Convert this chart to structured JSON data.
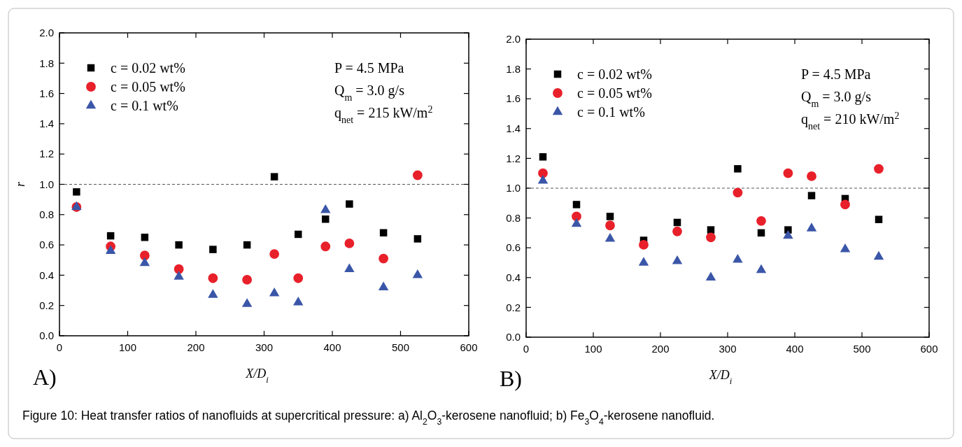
{
  "chart_data": [
    {
      "type": "scatter",
      "x": [
        25,
        75,
        125,
        175,
        225,
        275,
        315,
        350,
        390,
        425,
        475,
        525
      ],
      "series": [
        {
          "name": "c = 0.02 wt%",
          "color": "#000000",
          "marker": "square",
          "values": [
            0.95,
            0.66,
            0.65,
            0.6,
            0.57,
            0.6,
            1.05,
            0.67,
            0.77,
            0.87,
            0.68,
            0.64
          ]
        },
        {
          "name": "c = 0.05 wt%",
          "color": "#e8202a",
          "marker": "circle",
          "values": [
            0.85,
            0.59,
            0.53,
            0.44,
            0.38,
            0.37,
            0.54,
            0.38,
            0.59,
            0.61,
            0.51,
            1.06
          ]
        },
        {
          "name": "c = 0.1 wt%",
          "color": "#3a56a8",
          "marker": "triangle",
          "values": [
            0.85,
            0.56,
            0.48,
            0.39,
            0.27,
            0.21,
            0.28,
            0.22,
            0.83,
            0.44,
            0.32,
            0.4
          ]
        }
      ],
      "xlim": [
        0,
        600
      ],
      "xticks": [
        0,
        100,
        200,
        300,
        400,
        500,
        600
      ],
      "ylim": [
        0,
        2
      ],
      "yticks": [
        {
          "value": 0,
          "label": "0.0"
        },
        {
          "value": 0.2,
          "label": "0.2"
        },
        {
          "value": 0.4,
          "label": "0.4"
        },
        {
          "value": 0.6,
          "label": "0.6"
        },
        {
          "value": 0.8,
          "label": "0.8"
        },
        {
          "value": 1,
          "label": "1.0"
        },
        {
          "value": 1.2,
          "label": "1.2"
        },
        {
          "value": 1.4,
          "label": "1.4"
        },
        {
          "value": 1.6,
          "label": "1.6"
        },
        {
          "value": 1.8,
          "label": "1.8"
        },
        {
          "value": 2,
          "label": "2.0"
        }
      ],
      "xlabel": "X/D$_{i}$",
      "ylabel": "r",
      "legend": "top left",
      "ref_lines": [
        {
          "axis": "y",
          "value": 1,
          "line_style": "dashed",
          "color": "#555555"
        }
      ],
      "annotations": [
        "A)",
        "P = 4.5 MPa",
        "Q$_{m}$ = 3.0 g/s",
        "q$_{net}$ = 215 kW/m$^{2}$"
      ]
    },
    {
      "type": "scatter",
      "x": [
        25,
        75,
        125,
        175,
        225,
        275,
        315,
        350,
        390,
        425,
        475,
        525
      ],
      "series": [
        {
          "name": "c = 0.02 wt%",
          "color": "#000000",
          "marker": "square",
          "values": [
            1.21,
            0.89,
            0.81,
            0.65,
            0.77,
            0.72,
            1.13,
            0.7,
            0.72,
            0.95,
            0.93,
            0.79
          ]
        },
        {
          "name": "c = 0.05 wt%",
          "color": "#e8202a",
          "marker": "circle",
          "values": [
            1.1,
            0.81,
            0.75,
            0.62,
            0.71,
            0.67,
            0.97,
            0.78,
            1.1,
            1.08,
            0.89,
            1.13
          ]
        },
        {
          "name": "c = 0.1 wt%",
          "color": "#3a56a8",
          "marker": "triangle",
          "values": [
            1.05,
            0.76,
            0.66,
            0.5,
            0.51,
            0.4,
            0.52,
            0.45,
            0.68,
            0.73,
            0.59,
            0.54
          ]
        }
      ],
      "xlim": [
        0,
        600
      ],
      "xticks": [
        0,
        100,
        200,
        300,
        400,
        500,
        600
      ],
      "ylim": [
        0,
        2
      ],
      "yticks": [
        {
          "value": 0,
          "label": "0.0"
        },
        {
          "value": 0.2,
          "label": "0.2"
        },
        {
          "value": 0.4,
          "label": "0.4"
        },
        {
          "value": 0.6,
          "label": "0.6"
        },
        {
          "value": 0.8,
          "label": "0.8"
        },
        {
          "value": 1,
          "label": "1.0"
        },
        {
          "value": 1.2,
          "label": "1.2"
        },
        {
          "value": 1.4,
          "label": "1.4"
        },
        {
          "value": 1.6,
          "label": "1.6"
        },
        {
          "value": 1.8,
          "label": "1.8"
        },
        {
          "value": 2,
          "label": "2.0"
        }
      ],
      "xlabel": "X/D$_{i}$",
      "legend": "top left",
      "ref_lines": [
        {
          "axis": "y",
          "value": 1,
          "line_style": "dashed",
          "color": "#555555"
        }
      ],
      "annotations": [
        "B)",
        "P = 4.5 MPa",
        "Q$_{m}$ = 3.0 g/s",
        "q$_{net}$ = 210 kW/m$^{2}$",
        "Figure 10: Heat transfer ratios of nanofluids at supercritical pressure: a) Al$_{2}$O$_{3}$-kerosene nanofluid; b) Fe$_{3}$O$_{4}$-kerosene nanofluid."
      ]
    }
  ]
}
